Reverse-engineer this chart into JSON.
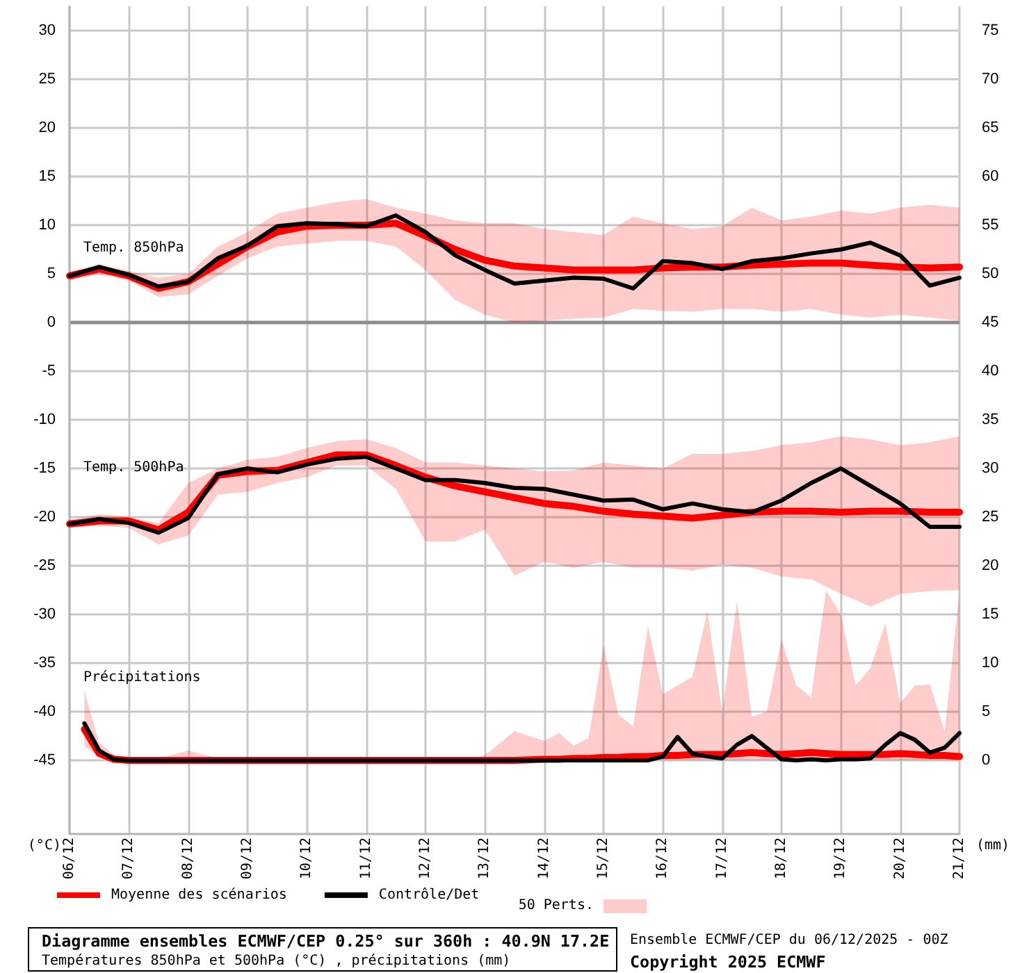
{
  "chart_data": {
    "type": "line",
    "title": "Diagramme ensembles ECMWF/CEP 0.25° sur 360h : 40.9N 17.2E",
    "subtitle": "Températures 850hPa et 500hPa (°C) , précipitations (mm)",
    "ylabel": "(°C)",
    "y2label": "(mm)",
    "legend_title": "50 Perts.",
    "annotations": [
      "Temp. 850hPa",
      "Temp. 500hPa",
      "Précipitations",
      "Ensemble ECMWF/CEP du 06/12/2025 - 00Z",
      "Copyright 2025 ECMWF"
    ],
    "x": [
      "2025-12-06",
      "2025-12-06T12:00",
      "2025-12-07",
      "2025-12-07T12:00",
      "2025-12-08",
      "2025-12-08T12:00",
      "2025-12-09",
      "2025-12-09T12:00",
      "2025-12-10",
      "2025-12-10T12:00",
      "2025-12-11",
      "2025-12-11T12:00",
      "2025-12-12",
      "2025-12-12T12:00",
      "2025-12-13",
      "2025-12-13T12:00",
      "2025-12-14",
      "2025-12-14T12:00",
      "2025-12-15",
      "2025-12-15T12:00",
      "2025-12-16",
      "2025-12-16T12:00",
      "2025-12-17",
      "2025-12-17T12:00",
      "2025-12-18",
      "2025-12-18T12:00",
      "2025-12-19",
      "2025-12-19T12:00",
      "2025-12-20",
      "2025-12-20T12:00",
      "2025-12-21"
    ],
    "xlim": [
      "2025-12-06",
      "2025-12-21"
    ],
    "xticks": [
      {
        "value": "2025-12-06",
        "label": "06/12"
      },
      {
        "value": "2025-12-07",
        "label": "07/12"
      },
      {
        "value": "2025-12-08",
        "label": "08/12"
      },
      {
        "value": "2025-12-09",
        "label": "09/12"
      },
      {
        "value": "2025-12-10",
        "label": "10/12"
      },
      {
        "value": "2025-12-11",
        "label": "11/12"
      },
      {
        "value": "2025-12-12",
        "label": "12/12"
      },
      {
        "value": "2025-12-13",
        "label": "13/12"
      },
      {
        "value": "2025-12-14",
        "label": "14/12"
      },
      {
        "value": "2025-12-15",
        "label": "15/12"
      },
      {
        "value": "2025-12-16",
        "label": "16/12"
      },
      {
        "value": "2025-12-17",
        "label": "17/12"
      },
      {
        "value": "2025-12-18",
        "label": "18/12"
      },
      {
        "value": "2025-12-19",
        "label": "19/12"
      },
      {
        "value": "2025-12-20",
        "label": "20/12"
      },
      {
        "value": "2025-12-21",
        "label": "21/12"
      }
    ],
    "ylim": [
      -52.5,
      32.5
    ],
    "yticks": [
      -45,
      -40,
      -35,
      -30,
      -25,
      -20,
      -15,
      -10,
      -5,
      0,
      5,
      10,
      15,
      20,
      25,
      30
    ],
    "y2lim": [
      -7.5,
      77.5
    ],
    "y2ticks": [
      0,
      5,
      10,
      15,
      20,
      25,
      30,
      35,
      40,
      45,
      50,
      55,
      60,
      65,
      70,
      75
    ],
    "ref_lines": [
      {
        "axis": "y",
        "value": 0,
        "color": "#8c8c8c"
      }
    ],
    "grid": true,
    "legend": "bottom",
    "series": [
      {
        "name": "Moyenne des scénarios",
        "color": "#ff0000",
        "values": [
          4.8,
          5.5,
          4.8,
          3.5,
          4.2,
          6.0,
          7.8,
          9.3,
          9.9,
          10.0,
          10.0,
          10.2,
          8.9,
          7.5,
          6.4,
          5.8,
          5.6,
          5.4,
          5.4,
          5.4,
          5.6,
          5.7,
          5.7,
          5.9,
          6.0,
          6.1,
          6.1,
          5.9,
          5.7,
          5.6,
          5.7
        ],
        "lower": [
          4.3,
          5.0,
          4.3,
          2.6,
          2.9,
          4.8,
          6.6,
          7.8,
          8.1,
          8.4,
          8.4,
          7.8,
          5.4,
          2.3,
          0.8,
          0.0,
          0.2,
          0.4,
          0.5,
          1.4,
          1.2,
          1.1,
          1.4,
          1.4,
          1.1,
          1.4,
          0.8,
          0.5,
          0.8,
          0.5,
          0.2
        ],
        "upper": [
          5.2,
          6.0,
          5.3,
          4.6,
          5.0,
          7.8,
          9.3,
          11.2,
          11.8,
          12.4,
          12.7,
          11.8,
          11.2,
          10.5,
          10.2,
          10.2,
          9.6,
          9.3,
          9.0,
          10.9,
          10.2,
          9.6,
          9.9,
          11.8,
          10.5,
          10.9,
          11.5,
          11.2,
          11.8,
          12.1,
          11.8
        ]
      },
      {
        "color": "#ff0000",
        "values": [
          -20.7,
          -20.4,
          -20.4,
          -21.3,
          -19.5,
          -15.7,
          -15.3,
          -15.2,
          -14.4,
          -13.6,
          -13.6,
          -14.7,
          -15.9,
          -16.8,
          -17.4,
          -18.0,
          -18.6,
          -18.9,
          -19.4,
          -19.7,
          -19.9,
          -20.1,
          -19.8,
          -19.5,
          -19.4,
          -19.4,
          -19.5,
          -19.4,
          -19.4,
          -19.5,
          -19.5
        ],
        "lower": [
          -21.1,
          -20.9,
          -21.1,
          -22.8,
          -21.9,
          -17.7,
          -17.4,
          -16.5,
          -15.9,
          -14.7,
          -14.7,
          -17.1,
          -22.5,
          -22.5,
          -21.3,
          -26.0,
          -24.6,
          -25.2,
          -24.6,
          -25.2,
          -25.2,
          -25.5,
          -24.9,
          -25.2,
          -26.1,
          -26.4,
          -27.9,
          -29.2,
          -27.9,
          -27.6,
          -27.5
        ],
        "upper": [
          -20.3,
          -19.7,
          -20.0,
          -20.6,
          -16.5,
          -15.0,
          -14.1,
          -13.8,
          -12.9,
          -12.2,
          -12.0,
          -12.9,
          -14.4,
          -14.4,
          -14.7,
          -15.0,
          -15.3,
          -15.2,
          -14.4,
          -14.7,
          -15.0,
          -13.5,
          -13.5,
          -13.2,
          -12.6,
          -12.3,
          -11.7,
          -12.0,
          -12.6,
          -12.3,
          -11.7
        ]
      },
      {
        "color": "#ff0000",
        "axis": "y2",
        "x": [
          "2025-12-06T06:00",
          "2025-12-06T12:00",
          "2025-12-06T18:00",
          "2025-12-07",
          "2025-12-07T12:00",
          "2025-12-08",
          "2025-12-08T12:00",
          "2025-12-09",
          "2025-12-09T12:00",
          "2025-12-10",
          "2025-12-10T12:00",
          "2025-12-11",
          "2025-12-11T12:00",
          "2025-12-12",
          "2025-12-12T12:00",
          "2025-12-13",
          "2025-12-13T12:00",
          "2025-12-14",
          "2025-12-14T06:00",
          "2025-12-14T12:00",
          "2025-12-14T18:00",
          "2025-12-15",
          "2025-12-15T06:00",
          "2025-12-15T12:00",
          "2025-12-15T18:00",
          "2025-12-16",
          "2025-12-16T06:00",
          "2025-12-16T12:00",
          "2025-12-16T18:00",
          "2025-12-17",
          "2025-12-17T06:00",
          "2025-12-17T12:00",
          "2025-12-17T18:00",
          "2025-12-18",
          "2025-12-18T06:00",
          "2025-12-18T12:00",
          "2025-12-18T18:00",
          "2025-12-19",
          "2025-12-19T06:00",
          "2025-12-19T12:00",
          "2025-12-19T18:00",
          "2025-12-20",
          "2025-12-20T06:00",
          "2025-12-20T12:00",
          "2025-12-20T18:00",
          "2025-12-21"
        ],
        "values": [
          3.2,
          0.7,
          0.1,
          0,
          0,
          0,
          0,
          0,
          0,
          0,
          0,
          0,
          0,
          0,
          0,
          0,
          0,
          0.1,
          0.1,
          0.2,
          0.2,
          0.3,
          0.3,
          0.4,
          0.4,
          0.5,
          0.5,
          0.6,
          0.6,
          0.6,
          0.7,
          0.8,
          0.7,
          0.6,
          0.7,
          0.8,
          0.7,
          0.6,
          0.6,
          0.6,
          0.6,
          0.7,
          0.6,
          0.5,
          0.5,
          0.4
        ],
        "lower": [
          1.5,
          0.3,
          0,
          0,
          0,
          0,
          0,
          0,
          0,
          0,
          0,
          0,
          0,
          0,
          0,
          0,
          0,
          0,
          0,
          0,
          0,
          0,
          0,
          0,
          0,
          0,
          0,
          0,
          0,
          0,
          0,
          0,
          0,
          0,
          0,
          0,
          0,
          0,
          0,
          0,
          0,
          0,
          0,
          0,
          0,
          0
        ],
        "upper": [
          7.1,
          1.8,
          0.6,
          0.1,
          0.2,
          1.0,
          0.2,
          0,
          0,
          0,
          0,
          0,
          0,
          0,
          0,
          0.5,
          3.0,
          2.0,
          2.8,
          1.5,
          2.3,
          11.9,
          4.7,
          3.5,
          13.8,
          6.8,
          7.7,
          8.6,
          15.3,
          5.0,
          16.3,
          4.5,
          5.0,
          12.4,
          7.7,
          6.5,
          17.5,
          15.0,
          7.7,
          9.5,
          14.1,
          5.9,
          7.7,
          7.8,
          3.0,
          17.4
        ]
      },
      {
        "name": "Contrôle/Det",
        "color": "#000000",
        "values": [
          4.8,
          5.7,
          4.9,
          3.7,
          4.2,
          6.6,
          7.9,
          9.9,
          10.2,
          10.1,
          9.9,
          11.0,
          9.3,
          6.9,
          5.4,
          4.0,
          4.3,
          4.6,
          4.5,
          3.5,
          6.3,
          6.1,
          5.5,
          6.3,
          6.6,
          7.1,
          7.5,
          8.2,
          6.9,
          3.8,
          4.6
        ]
      },
      {
        "color": "#000000",
        "values": [
          -20.7,
          -20.2,
          -20.6,
          -21.6,
          -20.1,
          -15.6,
          -15.0,
          -15.4,
          -14.6,
          -14.0,
          -13.8,
          -15.0,
          -16.2,
          -16.2,
          -16.5,
          -17.0,
          -17.1,
          -17.7,
          -18.3,
          -18.2,
          -19.2,
          -18.6,
          -19.2,
          -19.5,
          -18.3,
          -16.5,
          -15.0,
          -16.8,
          -18.6,
          -21.0,
          -21.0
        ]
      },
      {
        "color": "#000000",
        "axis": "y2",
        "x": [
          "2025-12-06T06:00",
          "2025-12-06T12:00",
          "2025-12-06T18:00",
          "2025-12-07",
          "2025-12-14",
          "2025-12-14T06:00",
          "2025-12-14T12:00",
          "2025-12-14T18:00",
          "2025-12-15",
          "2025-12-15T06:00",
          "2025-12-15T12:00",
          "2025-12-15T18:00",
          "2025-12-16",
          "2025-12-16T06:00",
          "2025-12-16T12:00",
          "2025-12-16T18:00",
          "2025-12-17",
          "2025-12-17T06:00",
          "2025-12-17T12:00",
          "2025-12-17T18:00",
          "2025-12-18",
          "2025-12-18T06:00",
          "2025-12-18T12:00",
          "2025-12-18T18:00",
          "2025-12-19",
          "2025-12-19T06:00",
          "2025-12-19T12:00",
          "2025-12-19T18:00",
          "2025-12-20",
          "2025-12-20T06:00",
          "2025-12-20T12:00",
          "2025-12-20T18:00",
          "2025-12-21"
        ],
        "values": [
          3.8,
          1.0,
          0.1,
          0,
          0,
          0,
          0,
          0,
          0,
          0,
          0,
          0,
          0.4,
          2.4,
          0.7,
          0.4,
          0.2,
          1.6,
          2.5,
          1.3,
          0.1,
          0,
          0.1,
          0,
          0.1,
          0.1,
          0.2,
          1.6,
          2.8,
          2.1,
          0.8,
          1.3,
          2.8
        ]
      }
    ]
  }
}
